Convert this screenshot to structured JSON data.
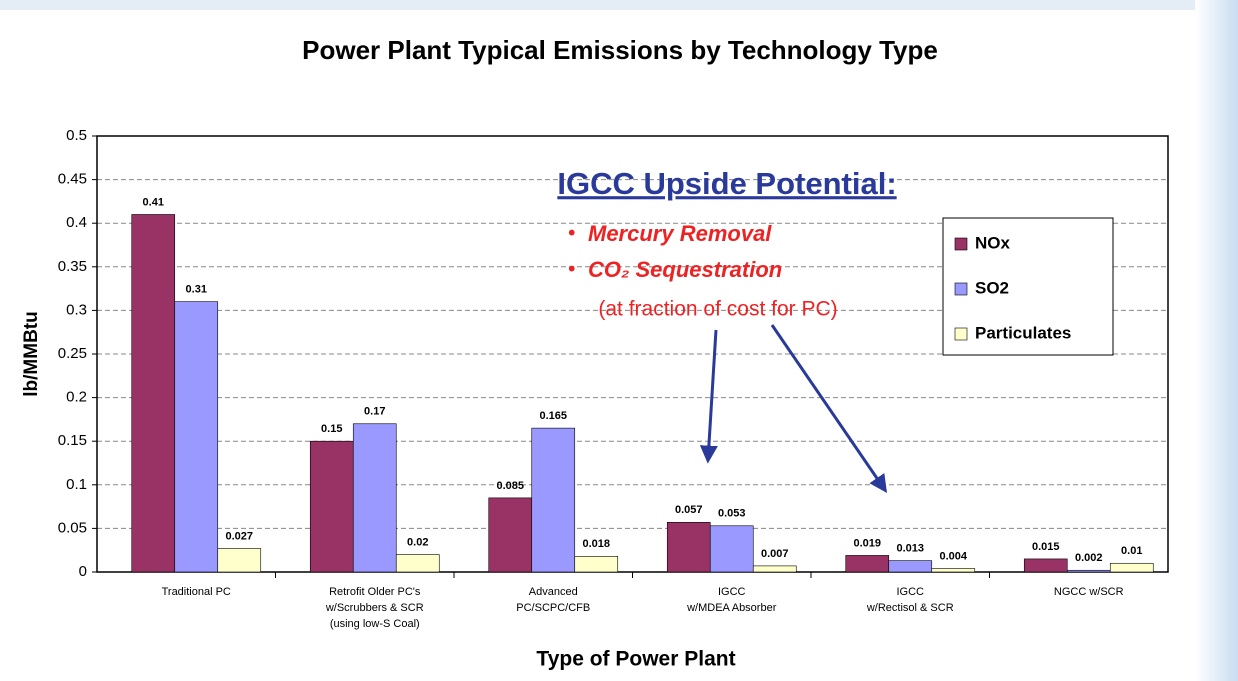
{
  "chart_data": {
    "type": "bar",
    "title": "Power Plant Typical Emissions by Technology Type",
    "y_label": "lb/MMBtu",
    "x_label": "Type of Power Plant",
    "categories": [
      [
        "Traditional PC"
      ],
      [
        "Retrofit Older PC's",
        "w/Scrubbers & SCR",
        "(using low-S Coal)"
      ],
      [
        "Advanced",
        "PC/SCPC/CFB"
      ],
      [
        "IGCC",
        "w/MDEA Absorber"
      ],
      [
        "IGCC",
        "w/Rectisol & SCR"
      ],
      [
        "NGCC w/SCR"
      ]
    ],
    "series": [
      {
        "name": "NOx",
        "color": "#993366",
        "values": [
          0.41,
          0.15,
          0.085,
          0.057,
          0.019,
          0.015
        ]
      },
      {
        "name": "SO2",
        "color": "#9999ff",
        "values": [
          0.31,
          0.17,
          0.165,
          0.053,
          0.013,
          0.002
        ]
      },
      {
        "name": "Particulates",
        "color": "#ffffcc",
        "values": [
          0.027,
          0.02,
          0.018,
          0.007,
          0.004,
          0.01
        ]
      }
    ],
    "ylim": [
      0,
      0.5
    ],
    "yticks": [
      0,
      0.05,
      0.1,
      0.15,
      0.2,
      0.25,
      0.3,
      0.35,
      0.4,
      0.45,
      0.5
    ],
    "grid": true,
    "legend": "upper right",
    "annotations": {
      "heading": "IGCC Upside Potential:",
      "bullets": [
        "Mercury Removal",
        "CO₂ Sequestration"
      ],
      "note": "(at fraction of cost for PC)"
    }
  }
}
